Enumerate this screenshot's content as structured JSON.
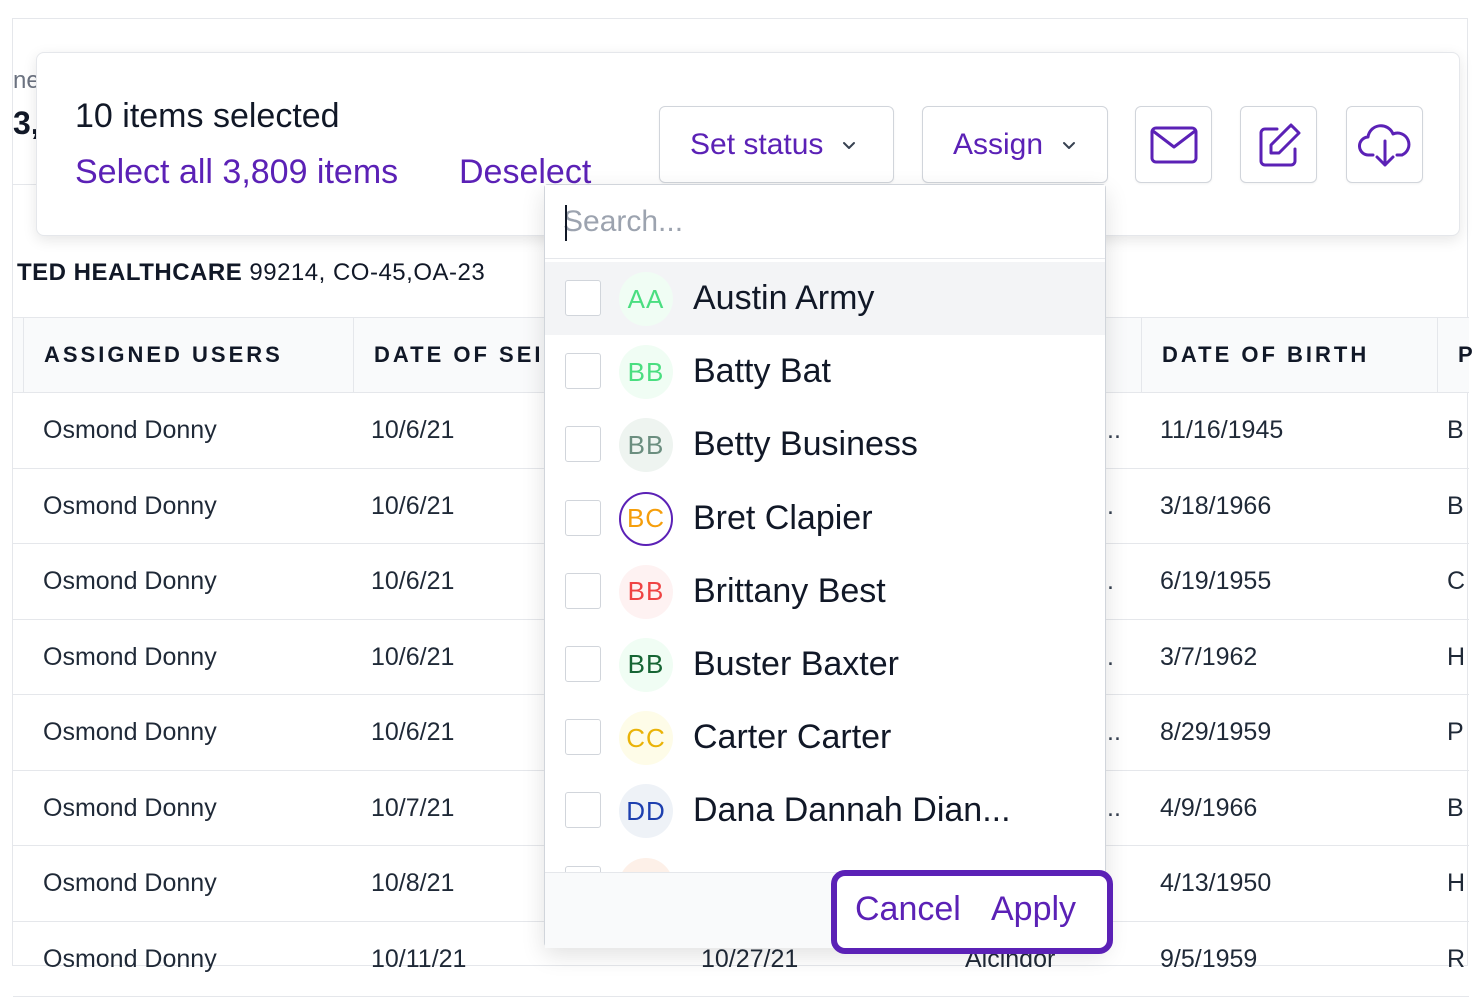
{
  "background": {
    "partial_top": "ne",
    "partial_count": "3,",
    "subheading_bold": "TED HEALTHCARE",
    "subheading_rest": " 99214, CO-45,OA-23"
  },
  "table": {
    "headers": [
      "ASSIGNED USERS",
      "DATE OF SEI",
      "DATE OF BIRTH",
      "P"
    ],
    "rows": [
      {
        "user": "Osmond Donny",
        "date": "10/6/21",
        "trunc": "..",
        "dob": "11/16/1945",
        "last": "B"
      },
      {
        "user": "Osmond Donny",
        "date": "10/6/21",
        "trunc": ".",
        "dob": "3/18/1966",
        "last": "B"
      },
      {
        "user": "Osmond Donny",
        "date": "10/6/21",
        "trunc": ".",
        "dob": "6/19/1955",
        "last": "C"
      },
      {
        "user": "Osmond Donny",
        "date": "10/6/21",
        "trunc": ".",
        "dob": "3/7/1962",
        "last": "H"
      },
      {
        "user": "Osmond Donny",
        "date": "10/6/21",
        "trunc": "..",
        "dob": "8/29/1959",
        "last": "P"
      },
      {
        "user": "Osmond Donny",
        "date": "10/7/21",
        "trunc": "..",
        "dob": "4/9/1966",
        "last": "B"
      },
      {
        "user": "Osmond Donny",
        "date": "10/8/21",
        "trunc": "",
        "dob": "4/13/1950",
        "last": "H"
      },
      {
        "user": "Osmond Donny",
        "date": "10/11/21",
        "date2": "10/27/21",
        "name": "Alcindor",
        "trunc": "",
        "dob": "9/5/1959",
        "last": "R"
      }
    ]
  },
  "toolbar": {
    "selected_text": "10 items selected",
    "select_all": "Select all 3,809 items",
    "deselect": "Deselect",
    "set_status": "Set status",
    "assign": "Assign",
    "icons": [
      "mail-icon",
      "edit-icon",
      "cloud-download-icon"
    ]
  },
  "dropdown": {
    "search_placeholder": "Search...",
    "options": [
      {
        "initials": "AA",
        "name": "Austin Army",
        "color": "#4ade80",
        "bg": "#f0fdf4"
      },
      {
        "initials": "BB",
        "name": "Batty Bat",
        "color": "#4ade80",
        "bg": "#f0fdf4"
      },
      {
        "initials": "BB",
        "name": "Betty Business",
        "color": "#6b8e7f",
        "bg": "#eef4f0"
      },
      {
        "initials": "BC",
        "name": "Bret Clapier",
        "color": "#f59e0b",
        "bg": "#ffffff",
        "ring": "#5b21b6"
      },
      {
        "initials": "BB",
        "name": "Brittany Best",
        "color": "#ef4444",
        "bg": "#fef2f2"
      },
      {
        "initials": "BB",
        "name": "Buster Baxter",
        "color": "#166534",
        "bg": "#f0fdf4"
      },
      {
        "initials": "CC",
        "name": "Carter Carter",
        "color": "#eab308",
        "bg": "#fefce8"
      },
      {
        "initials": "DD",
        "name": "Dana Dannah Dian...",
        "color": "#1e40af",
        "bg": "#eef2f7"
      }
    ],
    "cancel": "Cancel",
    "apply": "Apply"
  }
}
